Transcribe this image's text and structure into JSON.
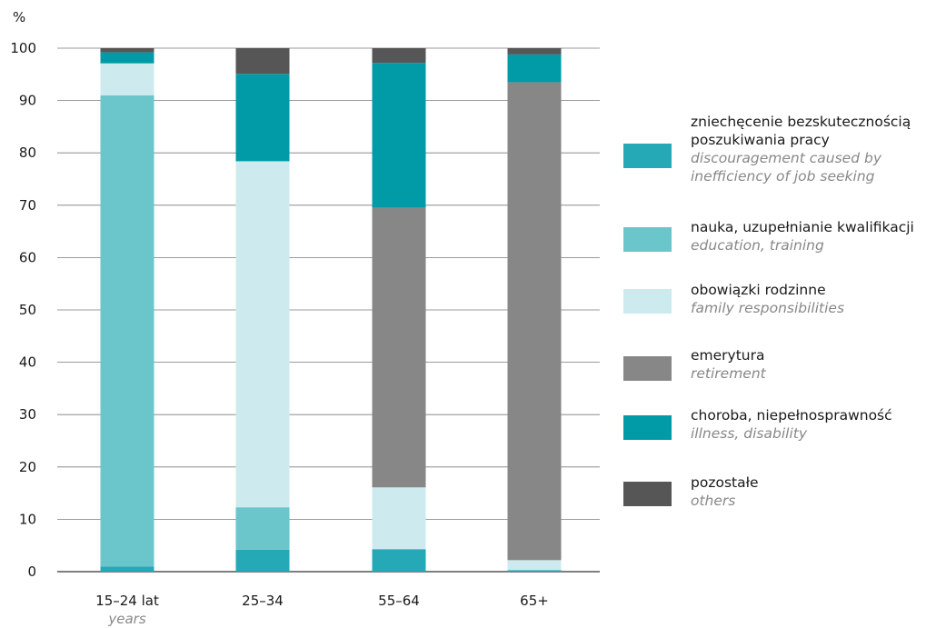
{
  "chart_data": {
    "type": "bar",
    "stacked": true,
    "y_unit": "%",
    "ylim": [
      0,
      100
    ],
    "yticks": [
      0,
      10,
      20,
      30,
      40,
      50,
      60,
      70,
      80,
      90,
      100
    ],
    "grid": true,
    "legend_position": "right",
    "categories": [
      {
        "label": "15–24 lat",
        "sublabel": "years"
      },
      {
        "label": "25–34",
        "sublabel": ""
      },
      {
        "label": "55–64",
        "sublabel": ""
      },
      {
        "label": "65+",
        "sublabel": ""
      }
    ],
    "series": [
      {
        "name": "zniechęcenie bezskutecznością poszukiwania pracy",
        "name_lines": [
          "zniechęcenie bezskutecznością",
          "poszukiwania pracy"
        ],
        "name_en_lines": [
          "discouragement caused by",
          "inefficiency of job seeking"
        ],
        "color": "#26a9b6",
        "values": [
          1.0,
          4.2,
          4.3,
          0.3
        ]
      },
      {
        "name": "nauka, uzupełnianie kwalifikacji",
        "name_lines": [
          "nauka, uzupełnianie kwalifikacji"
        ],
        "name_en_lines": [
          "education, training"
        ],
        "color": "#6ac6cb",
        "values": [
          90.0,
          8.1,
          0.0,
          0.0
        ]
      },
      {
        "name": "obowiązki rodzinne",
        "name_lines": [
          "obowiązki rodzinne"
        ],
        "name_en_lines": [
          "family  responsibilities"
        ],
        "color": "#cdebee",
        "values": [
          6.1,
          66.1,
          11.8,
          1.9
        ]
      },
      {
        "name": "emerytura",
        "name_lines": [
          "emerytura"
        ],
        "name_en_lines": [
          "retirement"
        ],
        "color": "#878787",
        "values": [
          0.0,
          0.0,
          53.4,
          91.3
        ]
      },
      {
        "name": "choroba, niepełnosprawność",
        "name_lines": [
          "choroba, niepełnosprawność"
        ],
        "name_en_lines": [
          "illness, disability"
        ],
        "color": "#009ba6",
        "values": [
          2.1,
          16.7,
          27.7,
          5.3
        ]
      },
      {
        "name": "pozostałe",
        "name_lines": [
          "pozostałe"
        ],
        "name_en_lines": [
          "others"
        ],
        "color": "#565656",
        "values": [
          0.8,
          4.9,
          2.8,
          1.2
        ]
      }
    ]
  }
}
